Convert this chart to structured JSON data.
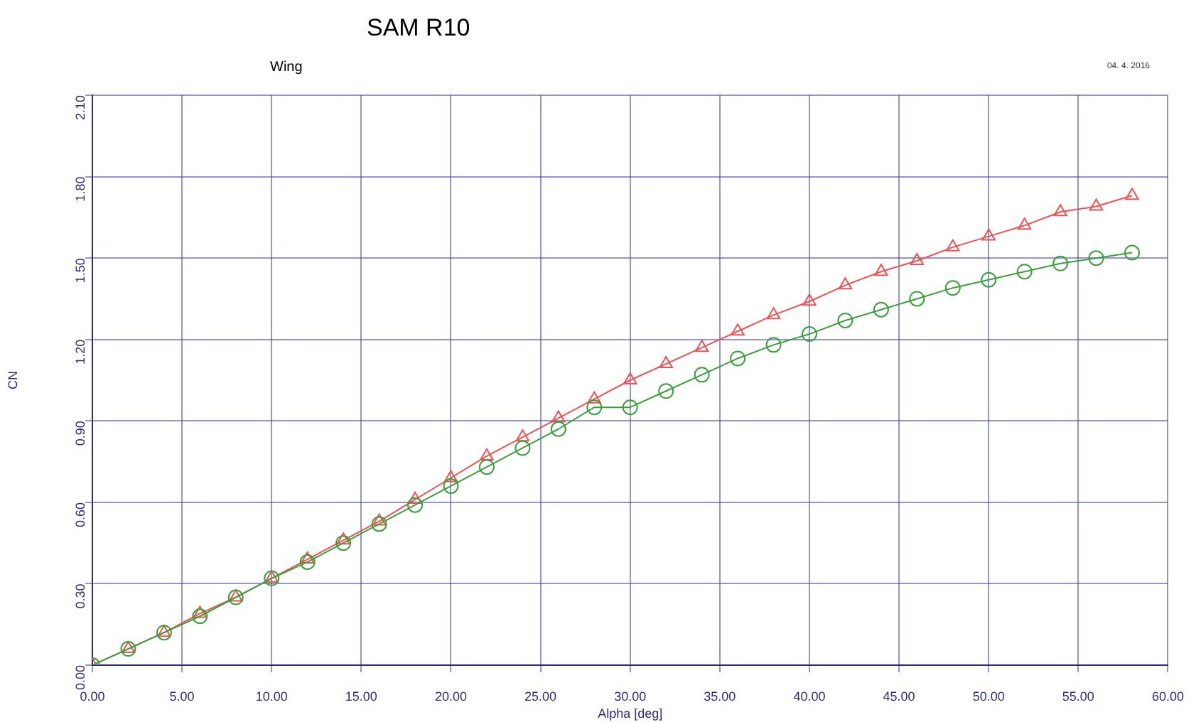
{
  "chart_data": {
    "type": "line",
    "title": "SAM R10",
    "subtitle": "Wing",
    "annotations": [
      "04. 4. 2016"
    ],
    "xlabel": "Alpha [deg]",
    "ylabel": "CN",
    "x": [
      0,
      2,
      4,
      6,
      8,
      10,
      12,
      14,
      16,
      18,
      20,
      22,
      24,
      26,
      28,
      30,
      32,
      34,
      36,
      38,
      40,
      42,
      44,
      46,
      48,
      50,
      52,
      54,
      56,
      58
    ],
    "series": [
      {
        "color": "#3aa03a",
        "marker": "circle",
        "values": [
          0,
          0.06,
          0.12,
          0.18,
          0.25,
          0.32,
          0.38,
          0.45,
          0.52,
          0.59,
          0.66,
          0.73,
          0.8,
          0.87,
          0.95,
          0.95,
          1.01,
          1.07,
          1.13,
          1.18,
          1.22,
          1.27,
          1.31,
          1.35,
          1.39,
          1.42,
          1.45,
          1.48,
          1.5,
          1.52
        ]
      },
      {
        "color": "#f05050",
        "marker": "triangle",
        "values": [
          0,
          0.06,
          0.12,
          0.19,
          0.25,
          0.32,
          0.39,
          0.46,
          0.53,
          0.61,
          0.69,
          0.77,
          0.84,
          0.91,
          0.98,
          1.05,
          1.11,
          1.17,
          1.23,
          1.29,
          1.34,
          1.4,
          1.45,
          1.49,
          1.54,
          1.58,
          1.62,
          1.67,
          1.69,
          1.73
        ]
      }
    ],
    "xlim": [
      0,
      60
    ],
    "xticks": [
      {
        "value": 0,
        "label": "0.00"
      },
      {
        "value": 5,
        "label": "5.00"
      },
      {
        "value": 10,
        "label": "10.00"
      },
      {
        "value": 15,
        "label": "15.00"
      },
      {
        "value": 20,
        "label": "20.00"
      },
      {
        "value": 25,
        "label": "25.00"
      },
      {
        "value": 30,
        "label": "30.00"
      },
      {
        "value": 35,
        "label": "35.00"
      },
      {
        "value": 40,
        "label": "40.00"
      },
      {
        "value": 45,
        "label": "45.00"
      },
      {
        "value": 50,
        "label": "50.00"
      },
      {
        "value": 55,
        "label": "55.00"
      },
      {
        "value": 60,
        "label": "60.00"
      }
    ],
    "ylim": [
      0,
      2.1
    ],
    "yticks": [
      {
        "value": 0,
        "label": "0.00"
      },
      {
        "value": 0.3,
        "label": "0.30"
      },
      {
        "value": 0.6,
        "label": "0.60"
      },
      {
        "value": 0.9,
        "label": "0.90"
      },
      {
        "value": 1.2,
        "label": "1.20"
      },
      {
        "value": 1.5,
        "label": "1.50"
      },
      {
        "value": 1.8,
        "label": "1.80"
      },
      {
        "value": 2.1,
        "label": "2.10"
      }
    ],
    "grid": true,
    "legend": false,
    "line_style": "solid"
  }
}
